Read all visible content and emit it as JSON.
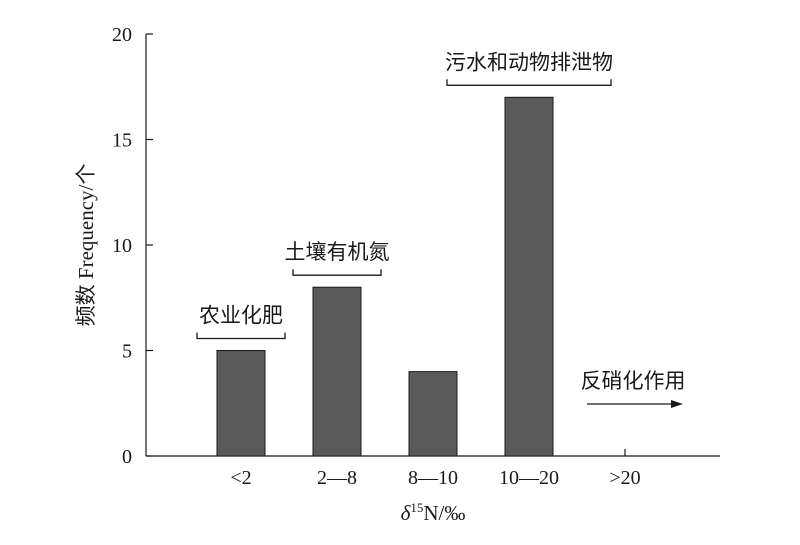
{
  "chart_data": {
    "type": "bar",
    "categories": [
      "<2",
      "2—8",
      "8—10",
      "10—20",
      ">20"
    ],
    "values": [
      5,
      8,
      4,
      17,
      0
    ],
    "xlabel": "δ15N/‰",
    "xlabel_parts": {
      "delta": "δ",
      "superscript": "15",
      "rest": "N/‰"
    },
    "ylabel": "频数 Frequency/个",
    "ylim": [
      0,
      20
    ],
    "yticks": [
      "0",
      "5",
      "10",
      "15",
      "20"
    ],
    "grid": false,
    "bar_color": "#5a5a5a",
    "annotations": [
      {
        "text": "农业化肥",
        "category": "<2",
        "style": "bracket"
      },
      {
        "text": "土壤有机氮",
        "category": "2—8",
        "style": "bracket"
      },
      {
        "text": "污水和动物排泄物",
        "category": "10—20",
        "style": "bracket"
      },
      {
        "text": "反硝化作用",
        "category": ">20",
        "style": "arrow"
      }
    ]
  }
}
